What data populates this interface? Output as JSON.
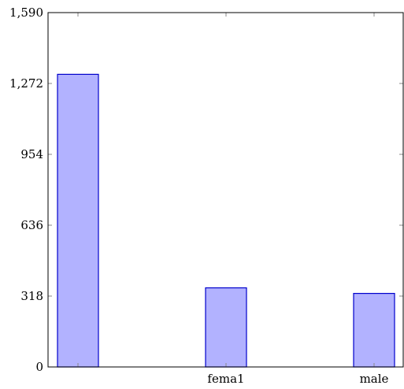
{
  "chart_data": {
    "type": "bar",
    "categories": [
      "",
      "fema1",
      "male"
    ],
    "values": [
      1313,
      355,
      330
    ],
    "title": "",
    "xlabel": "",
    "ylabel": "",
    "ylim": [
      0,
      1590
    ],
    "yticks": [
      0,
      318,
      636,
      954,
      1272,
      1590
    ],
    "ytick_labels": [
      "0",
      "318",
      "636",
      "954",
      "1,272",
      "1,590"
    ],
    "grid": false,
    "legend": "none",
    "colors": {
      "bar_fill": "#b2b2ff",
      "bar_stroke": "#0000cc",
      "axis": "#000000",
      "tick": "#888888"
    }
  }
}
